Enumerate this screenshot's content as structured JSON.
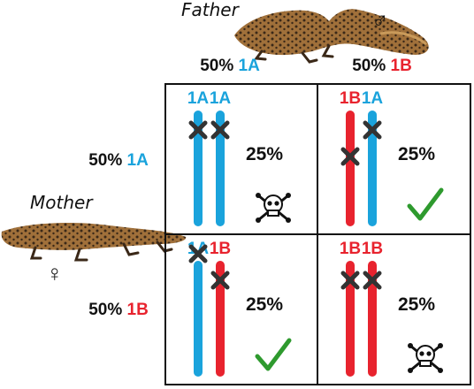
{
  "parents": {
    "father_label": "Father",
    "mother_label": "Mother",
    "male_symbol": "♂",
    "female_symbol": "♀"
  },
  "colors": {
    "allele_1A": "#1aa3dc",
    "allele_1B": "#e8232e",
    "text": "#111111",
    "grid": "#111111",
    "check": "#2e9a2e",
    "newt_body": "#a0703a",
    "newt_spots": "#3a2818"
  },
  "header": {
    "columns": [
      {
        "percent": "50%",
        "allele": "1A",
        "color": "#1aa3dc"
      },
      {
        "percent": "50%",
        "allele": "1B",
        "color": "#e8232e"
      }
    ],
    "rows": [
      {
        "percent": "50%",
        "allele": "1A",
        "color": "#1aa3dc"
      },
      {
        "percent": "50%",
        "allele": "1B",
        "color": "#e8232e"
      }
    ]
  },
  "cells": [
    {
      "left": "1A",
      "right": "1A",
      "percent": "25%",
      "outcome": "skull-crossbones-icon"
    },
    {
      "left": "1B",
      "right": "1A",
      "percent": "25%",
      "outcome": "check-mark-icon"
    },
    {
      "left": "1A",
      "right": "1B",
      "percent": "25%",
      "outcome": "check-mark-icon"
    },
    {
      "left": "1B",
      "right": "1B",
      "percent": "25%",
      "outcome": "skull-crossbones-icon"
    }
  ]
}
